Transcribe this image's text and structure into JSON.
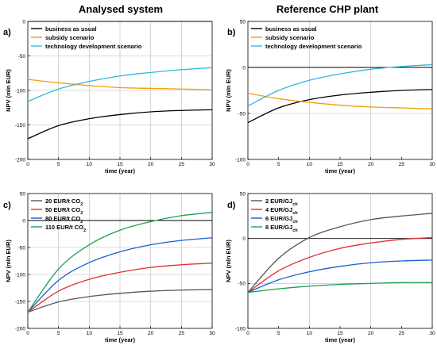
{
  "columns": [
    "Analysed system",
    "Reference CHP plant"
  ],
  "chart_data": [
    {
      "panel": "a)",
      "type": "line",
      "xlabel": "time (year)",
      "ylabel": "NPV (mln EUR)",
      "xlim": [
        0,
        30
      ],
      "ylim": [
        -200,
        0
      ],
      "xticks": [
        0,
        5,
        10,
        15,
        20,
        25,
        30
      ],
      "yticks": [
        -200,
        -150,
        -100,
        -50,
        0
      ],
      "x_gridlines": [
        5,
        10,
        15,
        20,
        25
      ],
      "y_gridlines": [
        -150,
        -100,
        -50
      ],
      "zero_line": true,
      "legend_position": "top-left",
      "series": [
        {
          "name": "business as usual",
          "color": "#000000",
          "x": [
            0,
            5,
            10,
            15,
            20,
            25,
            30
          ],
          "values": [
            -170,
            -151,
            -141,
            -135,
            -131,
            -129,
            -128
          ]
        },
        {
          "name": "subsidy scenario",
          "color": "#f0a000",
          "x": [
            0,
            5,
            10,
            15,
            20,
            25,
            30
          ],
          "values": [
            -84,
            -89,
            -93,
            -96,
            -97,
            -98,
            -99
          ]
        },
        {
          "name": "technology development scenario",
          "color": "#30b8e0",
          "x": [
            0,
            5,
            10,
            15,
            20,
            25,
            30
          ],
          "values": [
            -116,
            -98,
            -87,
            -79,
            -74,
            -70,
            -67
          ]
        }
      ]
    },
    {
      "panel": "b)",
      "type": "line",
      "xlabel": "time (year)",
      "ylabel": "NPV (mln EUR)",
      "xlim": [
        0,
        30
      ],
      "ylim": [
        -100,
        50
      ],
      "xticks": [
        0,
        5,
        10,
        15,
        20,
        25,
        30
      ],
      "yticks": [
        -100,
        -50,
        0,
        50
      ],
      "x_gridlines": [
        10,
        20
      ],
      "y_gridlines": [
        -50
      ],
      "zero_line": true,
      "legend_position": "top-left",
      "series": [
        {
          "name": "business as usual",
          "color": "#000000",
          "x": [
            0,
            5,
            10,
            15,
            20,
            25,
            30
          ],
          "values": [
            -60,
            -44,
            -35,
            -30,
            -27,
            -25,
            -24
          ]
        },
        {
          "name": "subsidy scenario",
          "color": "#f0a000",
          "x": [
            0,
            5,
            10,
            15,
            20,
            25,
            30
          ],
          "values": [
            -28,
            -34,
            -38,
            -41,
            -43,
            -44,
            -45
          ]
        },
        {
          "name": "technology development scenario",
          "color": "#30b8e0",
          "x": [
            0,
            5,
            10,
            15,
            20,
            25,
            30
          ],
          "values": [
            -42,
            -25,
            -14,
            -7,
            -2,
            1,
            3
          ]
        }
      ]
    },
    {
      "panel": "c)",
      "type": "line",
      "xlabel": "time (year)",
      "ylabel": "NPV (mln EUR)",
      "xlim": [
        0,
        30
      ],
      "ylim": [
        -200,
        50
      ],
      "xticks": [
        0,
        5,
        10,
        15,
        20,
        25,
        30
      ],
      "yticks": [
        -200,
        -150,
        -100,
        -50,
        0,
        50
      ],
      "x_gridlines": [
        5,
        10,
        15,
        20,
        25
      ],
      "y_gridlines": [
        -150,
        -100,
        -50
      ],
      "zero_line": true,
      "legend_position": "top-left",
      "series": [
        {
          "name": "20 EUR/t CO",
          "sub": "2",
          "color": "#555555",
          "x": [
            0,
            5,
            10,
            15,
            20,
            25,
            30
          ],
          "values": [
            -170,
            -151,
            -141,
            -135,
            -131,
            -129,
            -128
          ]
        },
        {
          "name": "50 EUR/t CO",
          "sub": "2",
          "color": "#e03030",
          "x": [
            0,
            5,
            10,
            15,
            20,
            25,
            30
          ],
          "values": [
            -170,
            -131,
            -109,
            -96,
            -87,
            -82,
            -79
          ]
        },
        {
          "name": "80 EUR/t CO",
          "sub": "2",
          "color": "#1a5fd0",
          "x": [
            0,
            5,
            10,
            15,
            20,
            25,
            30
          ],
          "values": [
            -170,
            -111,
            -78,
            -58,
            -45,
            -37,
            -32
          ]
        },
        {
          "name": "110 EUR/t CO",
          "sub": "2",
          "color": "#1aa050",
          "x": [
            0,
            5,
            10,
            15,
            20,
            25,
            30
          ],
          "values": [
            -170,
            -90,
            -45,
            -18,
            -2,
            9,
            15
          ]
        }
      ]
    },
    {
      "panel": "d)",
      "type": "line",
      "xlabel": "time (year)",
      "ylabel": "NPV (mln EUR)",
      "xlim": [
        0,
        30
      ],
      "ylim": [
        -100,
        50
      ],
      "xticks": [
        0,
        5,
        10,
        15,
        20,
        25,
        30
      ],
      "yticks": [
        -100,
        -50,
        0,
        50
      ],
      "x_gridlines": [
        10,
        20
      ],
      "y_gridlines": [
        -50
      ],
      "zero_line": true,
      "legend_position": "top-left",
      "series": [
        {
          "name": "2 EUR/GJ",
          "sub": "ch",
          "color": "#555555",
          "x": [
            0,
            5,
            10,
            15,
            20,
            25,
            30
          ],
          "values": [
            -60,
            -22,
            1,
            13,
            21,
            25,
            28
          ]
        },
        {
          "name": "4 EUR/GJ",
          "sub": "ch",
          "color": "#e03030",
          "x": [
            0,
            5,
            10,
            15,
            20,
            25,
            30
          ],
          "values": [
            -60,
            -36,
            -21,
            -11,
            -5,
            -1,
            1
          ]
        },
        {
          "name": "6 EUR/GJ",
          "sub": "ch",
          "color": "#1a5fd0",
          "x": [
            0,
            5,
            10,
            15,
            20,
            25,
            30
          ],
          "values": [
            -60,
            -46,
            -37,
            -31,
            -27,
            -25,
            -24
          ]
        },
        {
          "name": "8 EUR/GJ",
          "sub": "ch",
          "color": "#1aa050",
          "x": [
            0,
            5,
            10,
            15,
            20,
            25,
            30
          ],
          "values": [
            -60,
            -56,
            -53,
            -51,
            -50,
            -49,
            -49
          ]
        }
      ]
    }
  ]
}
